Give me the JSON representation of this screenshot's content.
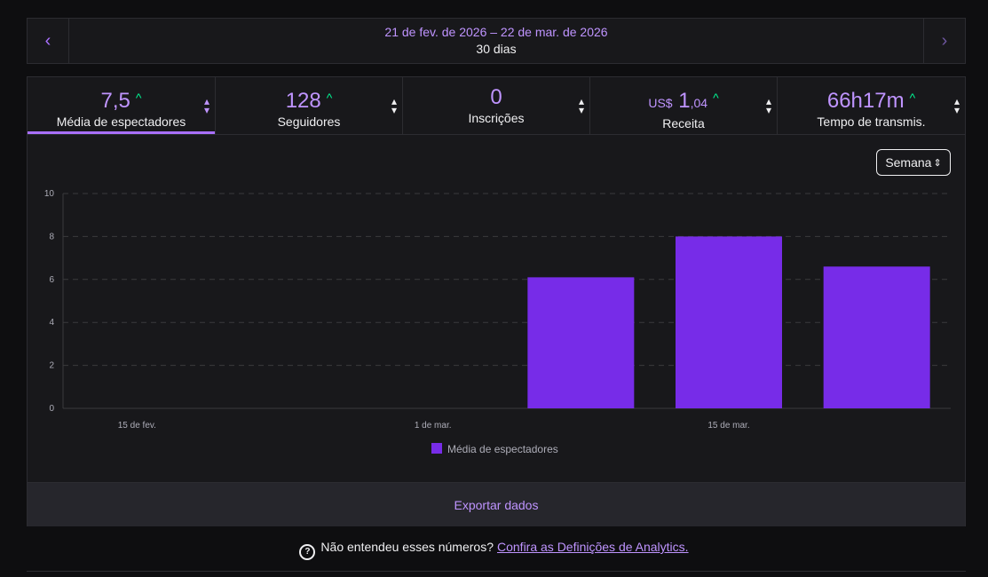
{
  "daterange": {
    "prev_icon": "‹",
    "next_icon": "›",
    "dates": "21 de fev. de 2026 – 22 de mar. de 2026",
    "days": "30 dias"
  },
  "tabs": [
    {
      "value": "7,5",
      "label": "Média de espectadores",
      "trend": "up",
      "active": true
    },
    {
      "value": "128",
      "label": "Seguidores",
      "trend": "up",
      "active": false
    },
    {
      "value": "0",
      "label": "Inscrições",
      "trend": "",
      "active": false
    },
    {
      "currency": "US$",
      "value": "1",
      "decimals": ",04",
      "label": "Receita",
      "trend": "up",
      "active": false
    },
    {
      "value": "66h17m",
      "label": "Tempo de transmis.",
      "trend": "up",
      "active": false
    }
  ],
  "period_select": {
    "value": "Semana"
  },
  "chart_data": {
    "type": "bar",
    "y_ticks": [
      "10",
      "8",
      "6",
      "4",
      "2",
      "0"
    ],
    "ylim": [
      0,
      10
    ],
    "x_tick_labels": [
      "15 de fev.",
      "1 de mar.",
      "15 de mar."
    ],
    "series": [
      {
        "name": "Média de espectadores",
        "color": "#772ce8",
        "values": [
          0,
          0,
          0,
          6.1,
          8.0,
          6.6
        ]
      }
    ],
    "grid": true,
    "legend": "bottom-center"
  },
  "export_label": "Exportar dados",
  "help": {
    "question": "Não entendeu esses números?",
    "link": "Confira as Definições de Analytics."
  },
  "colors": {
    "accent": "#a970ff",
    "bar": "#772ce8",
    "trend_up": "#00f593",
    "background": "#0e0e10",
    "panel": "#18181b"
  }
}
